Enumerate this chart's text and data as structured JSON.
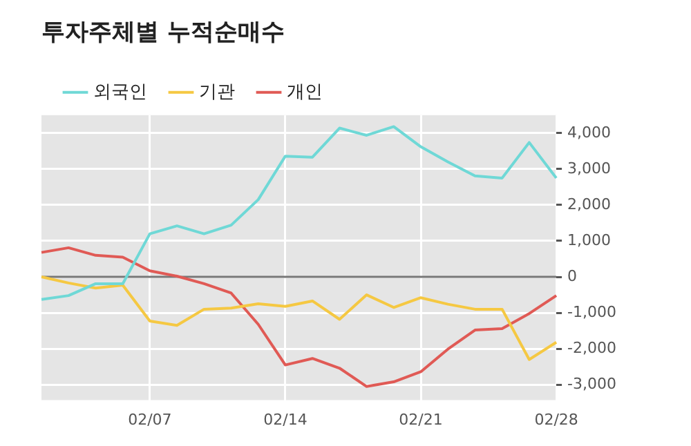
{
  "chart_data": {
    "type": "line",
    "title": "투자주체별 누적순매수",
    "categories": [
      null,
      null,
      null,
      null,
      "02/07",
      null,
      null,
      null,
      null,
      "02/14",
      null,
      null,
      null,
      null,
      "02/21",
      null,
      null,
      null,
      null,
      "02/28"
    ],
    "series": [
      {
        "name": "외국인",
        "color": "#6fd8d6",
        "values": [
          -630,
          -520,
          -190,
          -190,
          1200,
          1420,
          1200,
          1440,
          2150,
          3360,
          3330,
          4140,
          3940,
          4180,
          3620,
          3200,
          2810,
          2750,
          3740,
          2750
        ]
      },
      {
        "name": "기관",
        "color": "#f5c842",
        "values": [
          0,
          -170,
          -310,
          -230,
          -1230,
          -1350,
          -900,
          -870,
          -750,
          -820,
          -670,
          -1180,
          -500,
          -850,
          -580,
          -760,
          -900,
          -900,
          -2300,
          -1820
        ]
      },
      {
        "name": "개인",
        "color": "#e05a55",
        "values": [
          680,
          810,
          600,
          550,
          170,
          20,
          -190,
          -450,
          -1320,
          -2450,
          -2270,
          -2540,
          -3050,
          -2920,
          -2640,
          -2010,
          -1480,
          -1440,
          -1020,
          -520
        ]
      }
    ],
    "ylim": [
      -3430,
      4500
    ],
    "yticks": [
      {
        "value": -3000,
        "label": "-3,000"
      },
      {
        "value": -2000,
        "label": "-2,000"
      },
      {
        "value": -1000,
        "label": "-1,000"
      },
      {
        "value": 0,
        "label": "0"
      },
      {
        "value": 1000,
        "label": "1,000"
      },
      {
        "value": 2000,
        "label": "2,000"
      },
      {
        "value": 3000,
        "label": "3,000"
      },
      {
        "value": 4000,
        "label": "4,000"
      }
    ],
    "ref_lines": [
      {
        "axis": "y",
        "value": 0,
        "color": "#777777"
      }
    ],
    "grid": true,
    "legend": "top left",
    "marker": "none",
    "line_style": "solid"
  }
}
